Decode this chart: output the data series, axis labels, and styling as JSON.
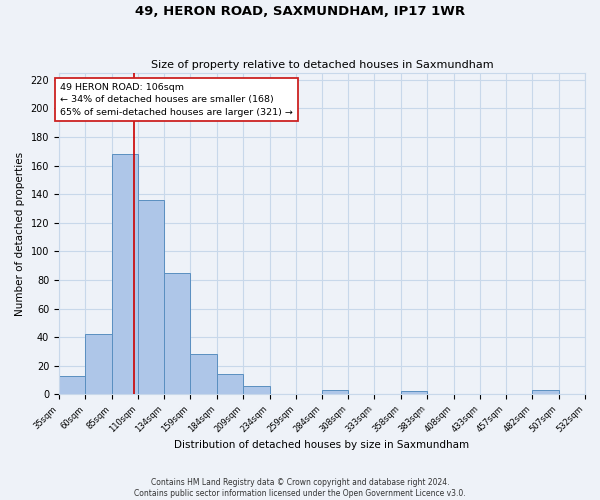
{
  "title": "49, HERON ROAD, SAXMUNDHAM, IP17 1WR",
  "subtitle": "Size of property relative to detached houses in Saxmundham",
  "xlabel": "Distribution of detached houses by size in Saxmundham",
  "ylabel": "Number of detached properties",
  "bin_edges": [
    35,
    60,
    85,
    110,
    134,
    159,
    184,
    209,
    234,
    259,
    284,
    308,
    333,
    358,
    383,
    408,
    433,
    457,
    482,
    507,
    532
  ],
  "bin_heights": [
    13,
    42,
    168,
    136,
    85,
    28,
    14,
    6,
    0,
    0,
    3,
    0,
    0,
    2,
    0,
    0,
    0,
    0,
    3,
    0
  ],
  "bar_color": "#aec6e8",
  "bar_edge_color": "#5a8fc0",
  "property_value": 106,
  "red_line_color": "#cc0000",
  "annotation_line1": "49 HERON ROAD: 106sqm",
  "annotation_line2": "← 34% of detached houses are smaller (168)",
  "annotation_line3": "65% of semi-detached houses are larger (321) →",
  "annotation_box_color": "#ffffff",
  "annotation_box_edge": "#cc2222",
  "ylim": [
    0,
    225
  ],
  "yticks": [
    0,
    20,
    40,
    60,
    80,
    100,
    120,
    140,
    160,
    180,
    200,
    220
  ],
  "grid_color": "#c8d8ea",
  "footer_line1": "Contains HM Land Registry data © Crown copyright and database right 2024.",
  "footer_line2": "Contains public sector information licensed under the Open Government Licence v3.0.",
  "background_color": "#eef2f8"
}
